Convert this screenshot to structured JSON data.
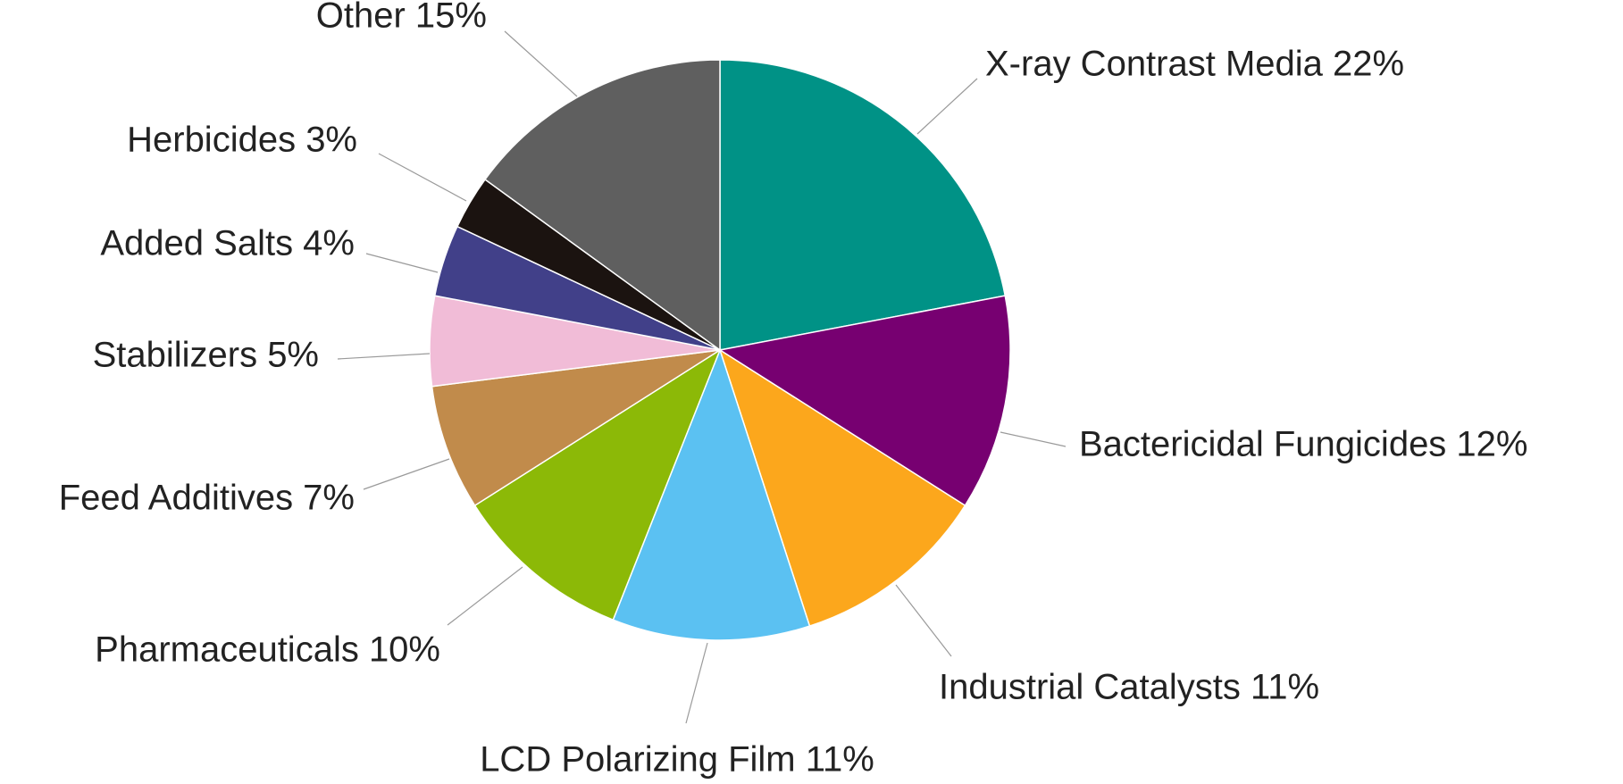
{
  "chart_data": {
    "type": "pie",
    "title": "",
    "start_angle_deg": 0,
    "direction": "clockwise",
    "legend": "none",
    "slices": [
      {
        "label": "X-ray Contrast Media",
        "value": 22,
        "value_label": "22%",
        "color": "#009286"
      },
      {
        "label": "Bactericidal Fungicides",
        "value": 12,
        "value_label": "12%",
        "color": "#770071"
      },
      {
        "label": "Industrial Catalysts",
        "value": 11,
        "value_label": "11%",
        "color": "#fca71c"
      },
      {
        "label": "LCD Polarizing Film",
        "value": 11,
        "value_label": "11%",
        "color": "#5bc1f2"
      },
      {
        "label": "Pharmaceuticals",
        "value": 10,
        "value_label": "10%",
        "color": "#8cb907"
      },
      {
        "label": "Feed Additives",
        "value": 7,
        "value_label": "7%",
        "color": "#c18b4b"
      },
      {
        "label": "Stabilizers",
        "value": 5,
        "value_label": "5%",
        "color": "#f1bcd7"
      },
      {
        "label": "Added Salts",
        "value": 4,
        "value_label": "4%",
        "color": "#414089"
      },
      {
        "label": "Herbicides",
        "value": 3,
        "value_label": "3%",
        "color": "#1b1310"
      },
      {
        "label": "Other",
        "value": 15,
        "value_label": "15%",
        "color": "#5f5f5f"
      }
    ]
  }
}
